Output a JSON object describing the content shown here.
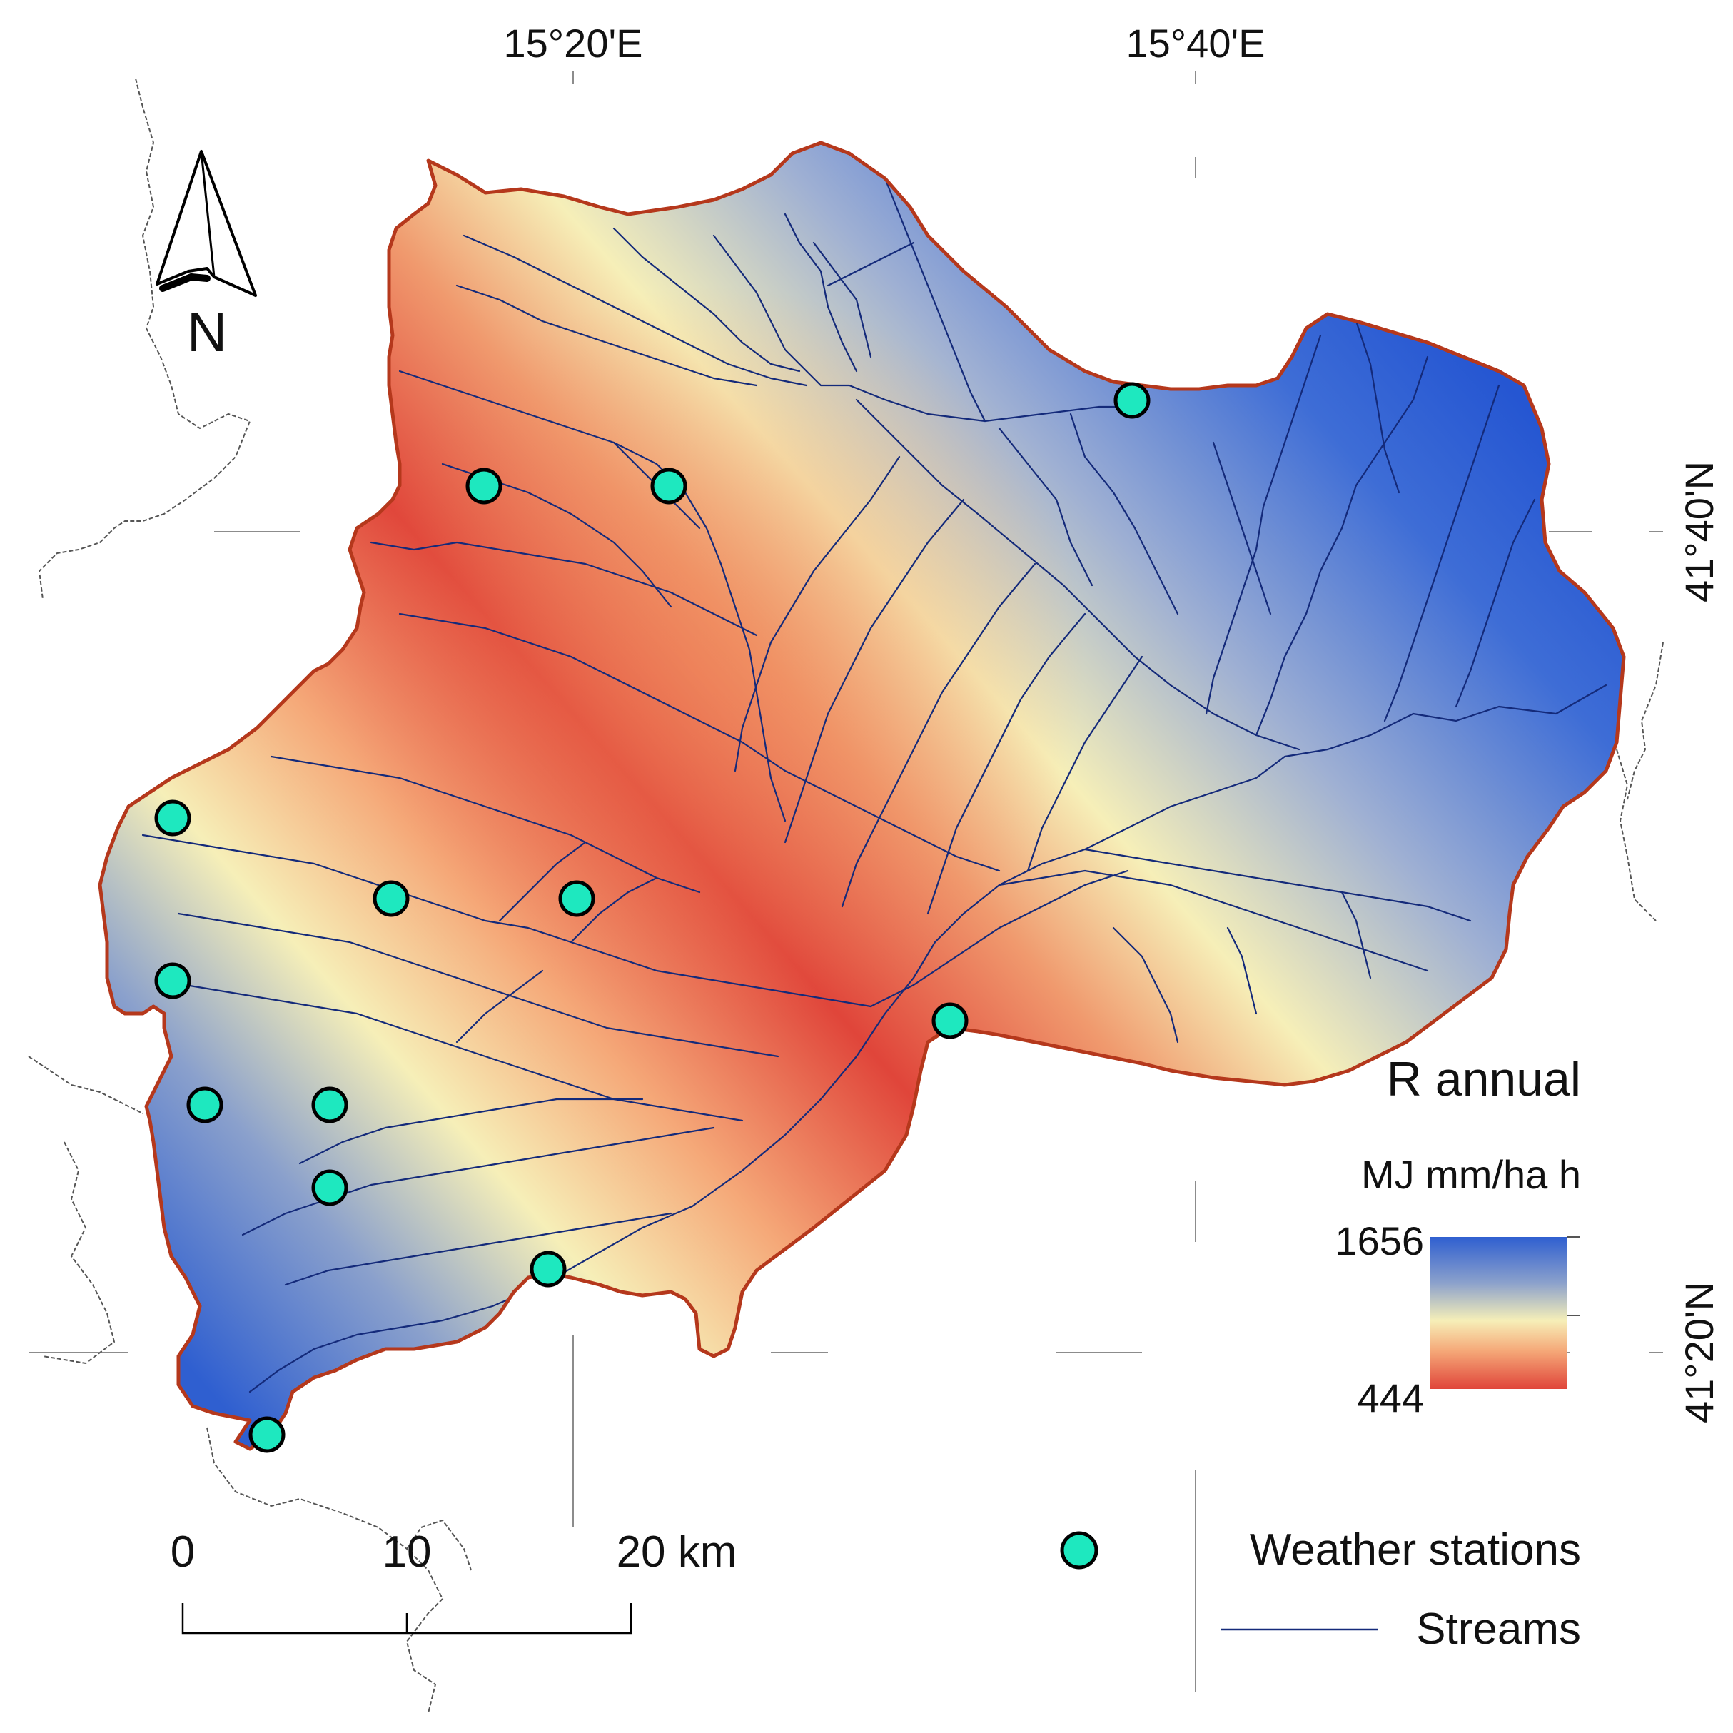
{
  "map": {
    "graticule": {
      "lon_labels": [
        "15°20'E",
        "15°40'E"
      ],
      "lat_labels": [
        "41°40'N",
        "41°20'N"
      ]
    },
    "north_arrow": {
      "label": "N",
      "icon": "north-arrow-icon"
    },
    "legend": {
      "title": "R annual",
      "unit": "MJ mm/ha h",
      "max_label": "1656",
      "min_label": "444",
      "value_range": [
        444,
        1656
      ],
      "ramp_colors": [
        "#2f5fd0",
        "#8aa0cc",
        "#f6efb8",
        "#f5a878",
        "#e0453a"
      ],
      "stations_label": "Weather stations",
      "streams_label": "Streams",
      "station_color": "#1ee8bf",
      "stream_color": "#142a7a",
      "boundary_color": "#b5381c"
    },
    "scale_bar": {
      "labels": [
        "0",
        "10",
        "20 km"
      ],
      "values_km": [
        0,
        10,
        20
      ]
    }
  }
}
